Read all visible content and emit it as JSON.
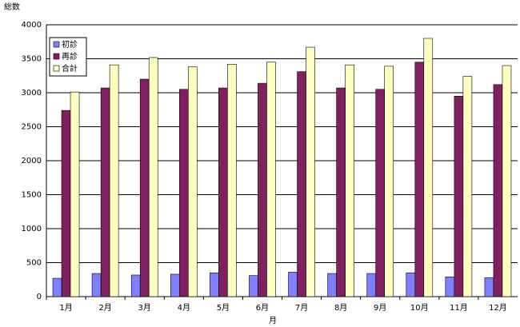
{
  "chart_data": {
    "type": "bar",
    "y_label": "総数",
    "x_label": "月",
    "categories": [
      "1月",
      "2月",
      "3月",
      "4月",
      "5月",
      "6月",
      "7月",
      "8月",
      "9月",
      "10月",
      "11月",
      "12月"
    ],
    "series": [
      {
        "name": "初診",
        "color": "#8080ff",
        "values": [
          270,
          340,
          318,
          330,
          350,
          310,
          360,
          340,
          340,
          350,
          290,
          280
        ]
      },
      {
        "name": "再診",
        "color": "#802060",
        "values": [
          2740,
          3070,
          3200,
          3050,
          3070,
          3140,
          3310,
          3070,
          3050,
          3450,
          2950,
          3120
        ]
      },
      {
        "name": "合計",
        "color": "#ffffc0",
        "values": [
          3010,
          3410,
          3518,
          3380,
          3420,
          3450,
          3670,
          3410,
          3390,
          3800,
          3240,
          3400
        ]
      }
    ],
    "ylim": [
      0,
      4000
    ],
    "yticks": [
      0,
      500,
      1000,
      1500,
      2000,
      2500,
      3000,
      3500,
      4000
    ],
    "grid": true,
    "legend": "top-left"
  }
}
